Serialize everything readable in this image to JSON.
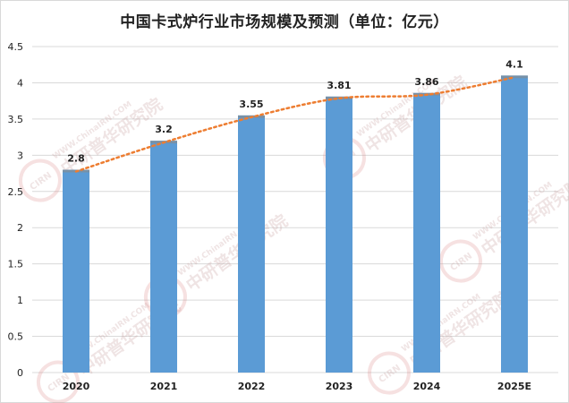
{
  "chart_data": {
    "type": "bar",
    "title": "中国卡式炉行业市场规模及预测（单位：亿元）",
    "categories": [
      "2020",
      "2021",
      "2022",
      "2023",
      "2024",
      "2025E"
    ],
    "values": [
      2.8,
      3.2,
      3.55,
      3.81,
      3.86,
      4.1
    ],
    "data_labels": [
      "2.8",
      "3.2",
      "3.55",
      "3.81",
      "3.86",
      "4.1"
    ],
    "ylim": [
      0,
      4.5
    ],
    "yticks": [
      "0",
      "0.5",
      "1",
      "1.5",
      "2",
      "2.5",
      "3",
      "3.5",
      "4",
      "4.5"
    ],
    "grid": true,
    "legend": "none",
    "trendline": "dotted",
    "colors": {
      "bar": "#5b9bd5",
      "trendline": "#ed7d31",
      "gridline": "#d9d9d9"
    },
    "watermark": {
      "cn": "中研普华研究院",
      "en": "WWW.ChinaIRN.COM",
      "logo": "CIRN"
    }
  }
}
